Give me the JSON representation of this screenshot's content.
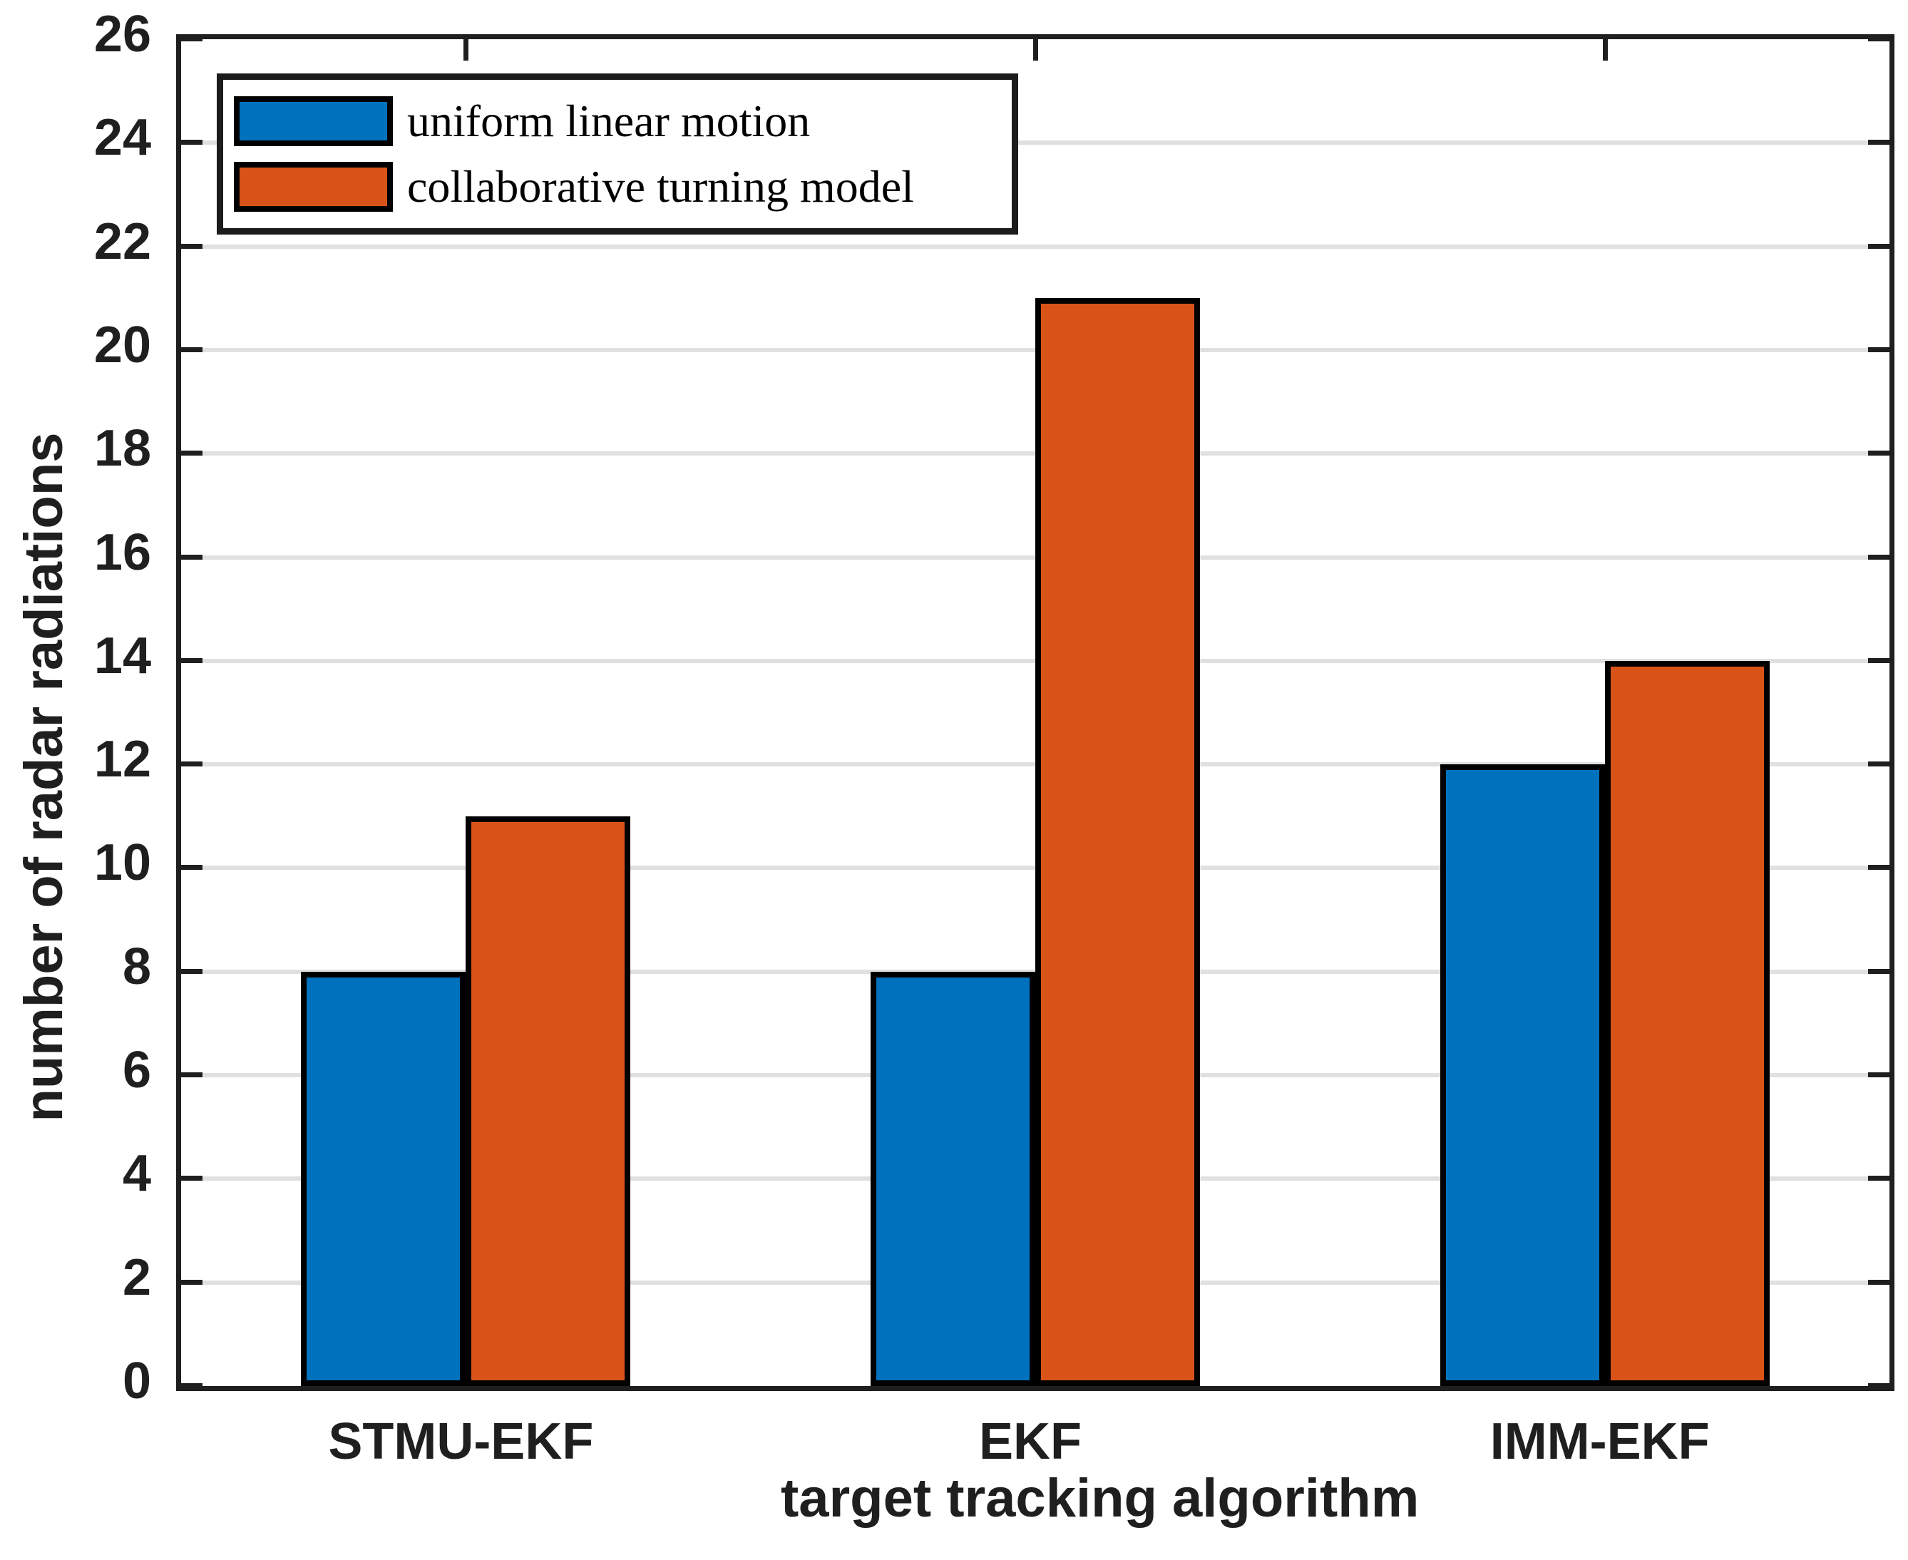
{
  "chart_data": {
    "type": "bar",
    "categories": [
      "STMU-EKF",
      "EKF",
      "IMM-EKF"
    ],
    "series": [
      {
        "name": "uniform linear motion",
        "color": "#0072BD",
        "values": [
          8,
          8,
          12
        ]
      },
      {
        "name": "collaborative turning model",
        "color": "#D95319",
        "values": [
          11,
          21,
          14
        ]
      }
    ],
    "xlabel": "target tracking algorithm",
    "ylabel": "number of radar radiations",
    "ylim": [
      0,
      26
    ],
    "yticks": [
      0,
      2,
      4,
      6,
      8,
      10,
      12,
      14,
      16,
      18,
      20,
      22,
      24,
      26
    ],
    "grid": "horizontal",
    "legend_position": "top-left-inside",
    "bar_edge_color": "#000000",
    "axis_color": "#1f1f1f",
    "grid_color": "#e0e0e0",
    "background_color": "#ffffff"
  }
}
